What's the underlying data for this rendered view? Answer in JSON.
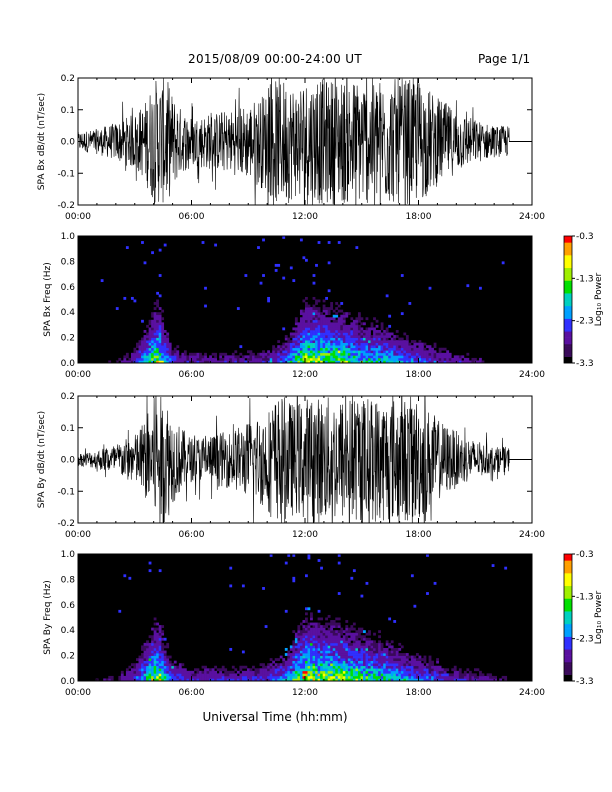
{
  "header": {
    "title": "2015/08/09  00:00-24:00 UT",
    "page": "Page 1/1"
  },
  "xaxis_label": "Universal Time (hh:mm)",
  "colors": {
    "waveform": "#000000",
    "spectrogram_bg": "#000000",
    "colorbar": [
      "#000000",
      "#3a0a5a",
      "#5a10a0",
      "#3030ff",
      "#00a0ff",
      "#00d0c0",
      "#00e000",
      "#a0f000",
      "#ffff00",
      "#ffa000",
      "#ff0000"
    ]
  },
  "chart_data": [
    {
      "type": "line",
      "ylabel": "SPA Bx dB/dt (nT/sec)",
      "ylim": [
        -0.2,
        0.2
      ],
      "yticks": [
        "-0.2",
        "-0.1",
        "0.0",
        "0.1",
        "0.2"
      ],
      "xlim": [
        0,
        24
      ],
      "xticks": [
        "00:00",
        "06:00",
        "12:00",
        "18:00",
        "24:00"
      ],
      "data_end_hour": 22.8,
      "amplitude_envelope": {
        "x_hours": [
          0,
          1,
          2,
          3,
          3.5,
          4.0,
          4.3,
          4.7,
          5,
          5.5,
          6,
          7,
          8,
          9,
          10,
          10.5,
          11,
          11.5,
          11.9,
          12,
          13,
          14,
          15,
          16,
          17,
          18,
          19,
          20,
          21,
          22,
          22.8
        ],
        "amplitude": [
          0.03,
          0.04,
          0.06,
          0.09,
          0.12,
          0.2,
          0.2,
          0.2,
          0.15,
          0.1,
          0.08,
          0.09,
          0.1,
          0.12,
          0.16,
          0.2,
          0.2,
          0.18,
          0.2,
          0.2,
          0.2,
          0.2,
          0.2,
          0.2,
          0.2,
          0.2,
          0.14,
          0.1,
          0.07,
          0.05,
          0.05
        ]
      }
    },
    {
      "type": "heatmap",
      "ylabel": "SPA Bx Freq (Hz)",
      "ylim": [
        0.0,
        1.0
      ],
      "yticks": [
        "0.0",
        "0.2",
        "0.4",
        "0.6",
        "0.8",
        "1.0"
      ],
      "xlim": [
        0,
        24
      ],
      "xticks": [
        "00:00",
        "06:00",
        "12:00",
        "18:00",
        "24:00"
      ],
      "data_end_hour": 22.8,
      "colorbar": {
        "label": "Log₁₀ Power",
        "range": [
          -3.3,
          -0.3
        ],
        "ticks": [
          "-0.3",
          "-1.3",
          "-2.3",
          "-3.3"
        ]
      },
      "activity_profile": {
        "x_hours": [
          0,
          2,
          3,
          4.0,
          4.3,
          4.6,
          5,
          6,
          8,
          10,
          11,
          12,
          13,
          14,
          15,
          16,
          17,
          18,
          20,
          22,
          22.8
        ],
        "level": [
          0.1,
          0.15,
          0.3,
          0.75,
          0.85,
          0.6,
          0.35,
          0.25,
          0.25,
          0.3,
          0.45,
          0.85,
          0.8,
          0.75,
          0.65,
          0.6,
          0.5,
          0.4,
          0.25,
          0.15,
          0.1
        ]
      }
    },
    {
      "type": "line",
      "ylabel": "SPA By dB/dt (nT/sec)",
      "ylim": [
        -0.2,
        0.2
      ],
      "yticks": [
        "-0.2",
        "-0.1",
        "0.0",
        "0.1",
        "0.2"
      ],
      "xlim": [
        0,
        24
      ],
      "xticks": [
        "00:00",
        "06:00",
        "12:00",
        "18:00",
        "24:00"
      ],
      "data_end_hour": 22.8,
      "amplitude_envelope": {
        "x_hours": [
          0,
          1,
          2,
          3,
          3.5,
          4.0,
          4.3,
          4.7,
          5,
          5.5,
          6,
          7,
          8,
          9,
          10,
          10.5,
          11,
          11.5,
          11.9,
          12,
          13,
          14,
          15,
          16,
          17,
          18,
          19,
          20,
          21,
          22,
          22.8
        ],
        "amplitude": [
          0.02,
          0.03,
          0.05,
          0.08,
          0.12,
          0.2,
          0.2,
          0.2,
          0.14,
          0.1,
          0.07,
          0.08,
          0.09,
          0.12,
          0.16,
          0.2,
          0.2,
          0.17,
          0.2,
          0.2,
          0.2,
          0.2,
          0.2,
          0.2,
          0.2,
          0.2,
          0.13,
          0.09,
          0.06,
          0.04,
          0.04
        ]
      }
    },
    {
      "type": "heatmap",
      "ylabel": "SPA By Freq (Hz)",
      "ylim": [
        0.0,
        1.0
      ],
      "yticks": [
        "0.0",
        "0.2",
        "0.4",
        "0.6",
        "0.8",
        "1.0"
      ],
      "xlim": [
        0,
        24
      ],
      "xticks": [
        "00:00",
        "06:00",
        "12:00",
        "18:00",
        "24:00"
      ],
      "data_end_hour": 22.8,
      "colorbar": {
        "label": "Log₁₀ Power",
        "range": [
          -3.3,
          -0.3
        ],
        "ticks": [
          "-0.3",
          "-1.3",
          "-2.3",
          "-3.3"
        ]
      },
      "activity_profile": {
        "x_hours": [
          0,
          2,
          3,
          4.0,
          4.3,
          4.6,
          5,
          6,
          8,
          10,
          11,
          12,
          13,
          14,
          15,
          16,
          17,
          18,
          20,
          22,
          22.8
        ],
        "level": [
          0.12,
          0.18,
          0.35,
          0.8,
          0.85,
          0.6,
          0.4,
          0.3,
          0.3,
          0.35,
          0.5,
          0.9,
          0.85,
          0.8,
          0.7,
          0.65,
          0.55,
          0.45,
          0.3,
          0.2,
          0.15
        ]
      }
    }
  ]
}
